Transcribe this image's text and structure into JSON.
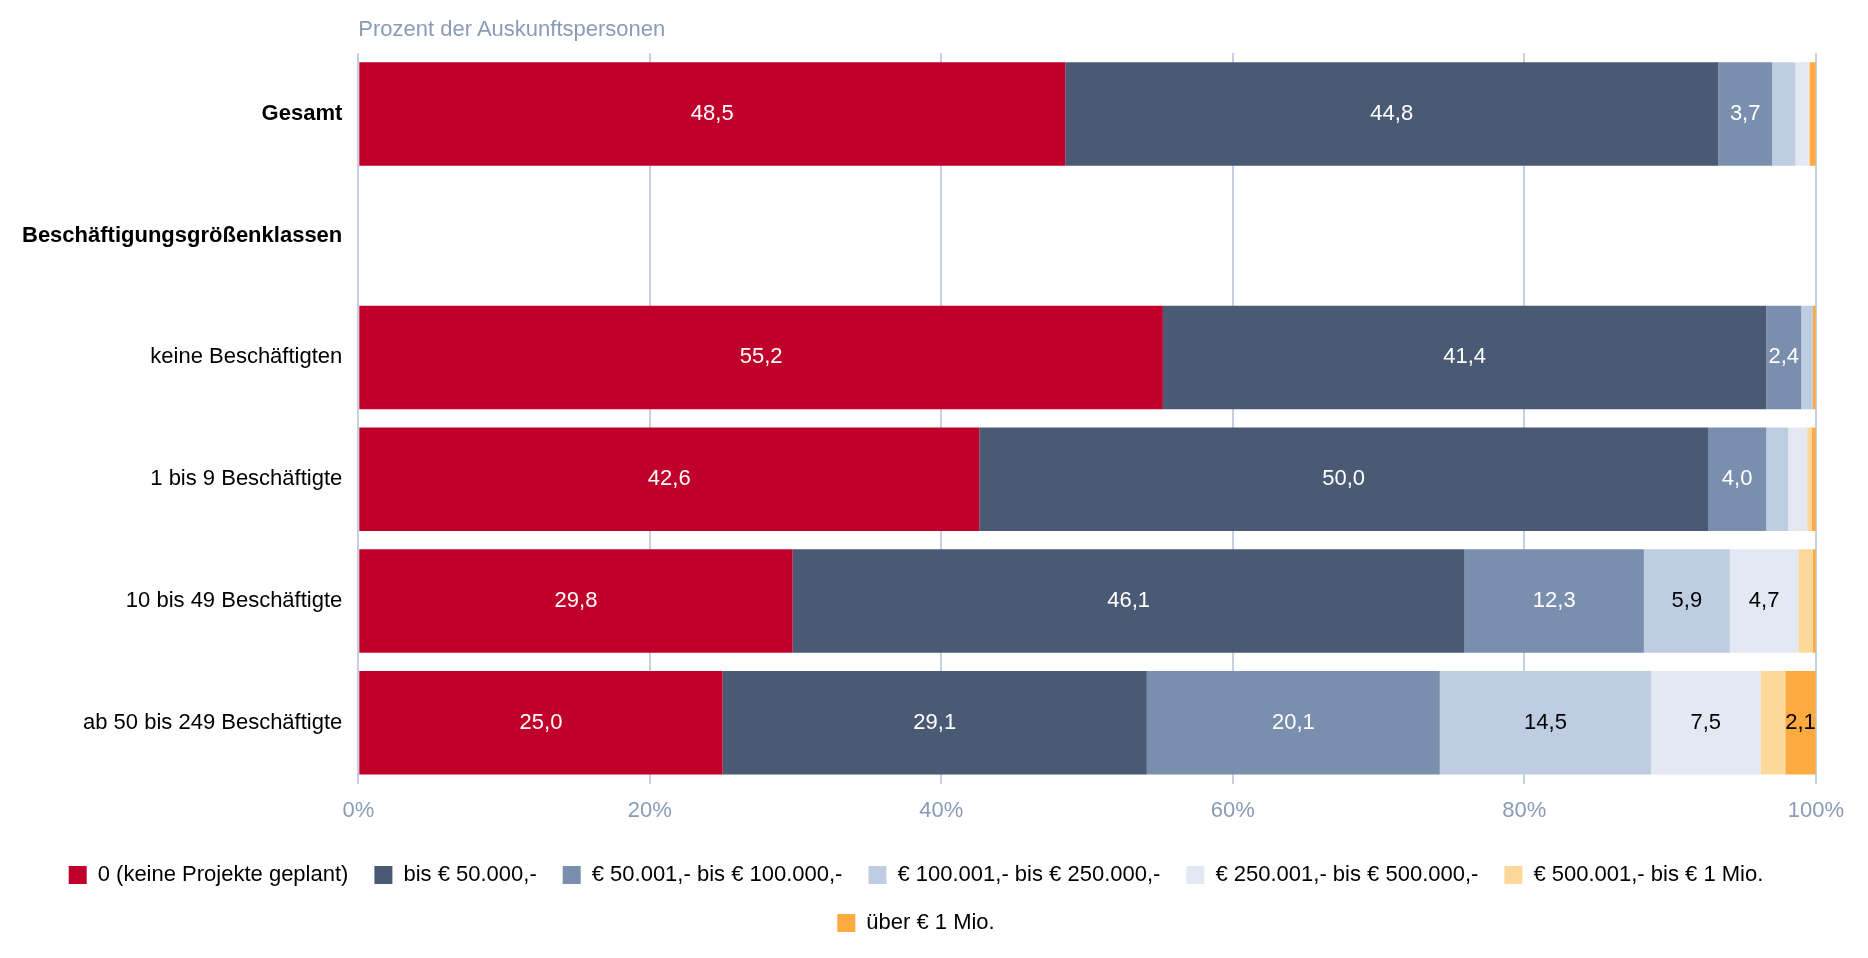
{
  "chart_data": {
    "type": "bar",
    "orientation": "horizontal",
    "stacked": true,
    "title": "Prozent der Auskunftspersonen",
    "categories": [
      "Gesamt",
      "Beschäftigungsgrößenklassen",
      "keine Beschäftigten",
      "1 bis 9 Beschäftigte",
      "10 bis 49 Beschäftigte",
      "ab 50 bis 249 Beschäftigte"
    ],
    "series": [
      {
        "name": "0 (keine Projekte geplant)",
        "color": "#c0002a",
        "values": [
          48.5,
          null,
          55.2,
          42.6,
          29.8,
          25.0
        ],
        "value_labels": [
          "48,5",
          null,
          "55,2",
          "42,6",
          "29,8",
          "25,0"
        ]
      },
      {
        "name": "bis € 50.000,-",
        "color": "#4a5a74",
        "values": [
          44.8,
          null,
          41.4,
          50.0,
          46.1,
          29.1
        ],
        "value_labels": [
          "44,8",
          null,
          "41,4",
          "50,0",
          "46,1",
          "29,1"
        ]
      },
      {
        "name": "€ 50.001,- bis € 100.000,-",
        "color": "#7a8fae",
        "values": [
          3.7,
          null,
          2.4,
          4.0,
          12.3,
          20.1
        ],
        "value_labels": [
          "3,7",
          null,
          "2,4",
          "4,0",
          "12,3",
          "20,1"
        ]
      },
      {
        "name": "€ 100.001,- bis € 250.000,-",
        "color": "#bfcde3",
        "values": [
          1.6,
          null,
          0.8,
          1.5,
          5.9,
          14.5
        ],
        "value_labels": [
          null,
          null,
          null,
          null,
          "5,9",
          "14,5"
        ]
      },
      {
        "name": "€ 250.001,- bis € 500.000,-",
        "color": "#e3e8f3",
        "values": [
          0.9,
          null,
          0.0,
          1.3,
          4.7,
          7.5
        ],
        "value_labels": [
          null,
          null,
          null,
          null,
          "4,7",
          "7,5"
        ]
      },
      {
        "name": "€ 500.001,- bis € 1 Mio.",
        "color": "#fcd89a",
        "values": [
          0.1,
          null,
          0.0,
          0.3,
          1.0,
          1.7
        ],
        "value_labels": [
          null,
          null,
          null,
          null,
          null,
          null
        ]
      },
      {
        "name": "über € 1 Mio.",
        "color": "#fdab40",
        "values": [
          0.4,
          null,
          0.2,
          0.3,
          0.2,
          2.1
        ],
        "value_labels": [
          null,
          null,
          null,
          null,
          null,
          "2,1"
        ]
      }
    ],
    "xlim": [
      0,
      100
    ],
    "xticks": [
      {
        "value": 0,
        "label": "0%"
      },
      {
        "value": 20,
        "label": "20%"
      },
      {
        "value": 40,
        "label": "40%"
      },
      {
        "value": 60,
        "label": "60%"
      },
      {
        "value": 80,
        "label": "80%"
      },
      {
        "value": 100,
        "label": "100%"
      }
    ],
    "grid": "x",
    "legend": "bottom"
  }
}
